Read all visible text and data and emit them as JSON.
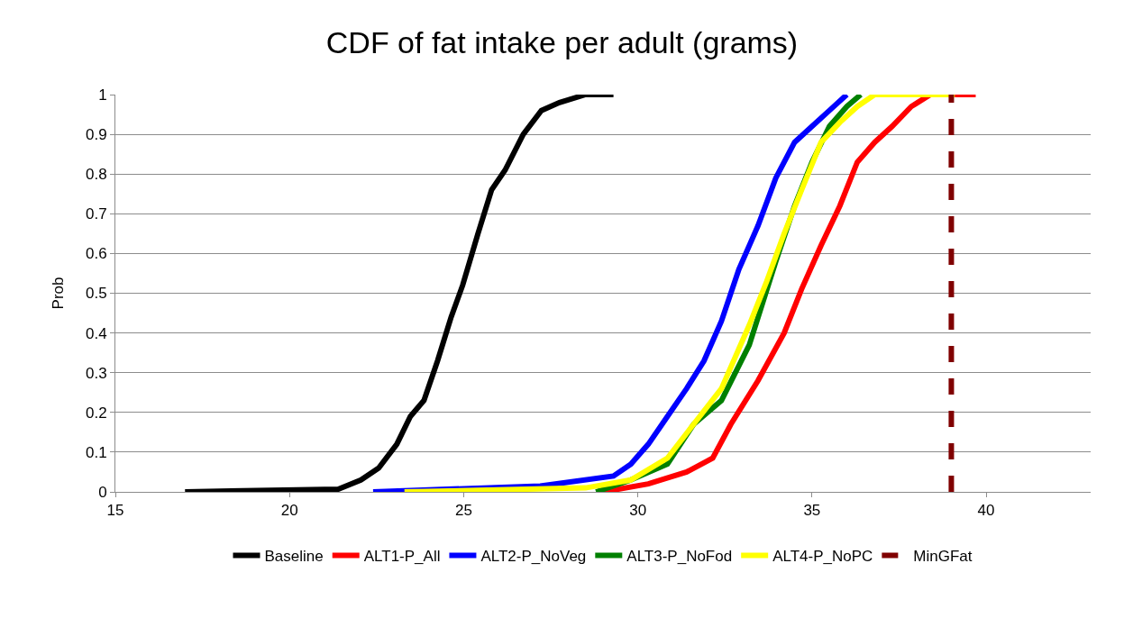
{
  "chart_data": {
    "type": "line",
    "title": "CDF of fat intake per adult (grams)",
    "ylabel": "Prob",
    "xlim": [
      15,
      43
    ],
    "xticks": [
      15,
      20,
      25,
      30,
      35,
      40
    ],
    "ylim": [
      0,
      1
    ],
    "yticks": [
      0,
      0.1,
      0.2,
      0.3,
      0.4,
      0.5,
      0.6,
      0.7,
      0.8,
      0.9,
      1
    ],
    "grid": "y",
    "legend": "bottom",
    "marker": "none",
    "line_style": "solid",
    "series": [
      {
        "name": "Baseline",
        "color": "#000000",
        "x": [
          17.0,
          21.4,
          22.05,
          22.56,
          23.08,
          23.47,
          23.86,
          24.25,
          24.64,
          24.97,
          25.41,
          25.8,
          26.19,
          26.71,
          27.23,
          27.75,
          28.5,
          29.3
        ],
        "values": [
          0,
          0.007,
          0.03,
          0.06,
          0.12,
          0.19,
          0.23,
          0.33,
          0.44,
          0.52,
          0.65,
          0.76,
          0.81,
          0.9,
          0.96,
          0.98,
          1,
          1
        ]
      },
      {
        "name": "ALT1-P_All",
        "color": "#ff0000",
        "x": [
          29.0,
          30.3,
          31.4,
          32.15,
          32.67,
          33.45,
          34.2,
          34.7,
          35.26,
          35.8,
          36.3,
          36.8,
          37.3,
          37.85,
          38.4,
          39.7
        ],
        "values": [
          0,
          0.02,
          0.05,
          0.085,
          0.17,
          0.28,
          0.4,
          0.51,
          0.62,
          0.72,
          0.83,
          0.88,
          0.92,
          0.97,
          1,
          1
        ]
      },
      {
        "name": "ALT2-P_NoVeg",
        "color": "#0000ff",
        "x": [
          22.4,
          27.2,
          29.3,
          29.8,
          30.3,
          30.85,
          31.4,
          31.9,
          32.4,
          32.9,
          33.45,
          33.96,
          34.5,
          35.0,
          35.5,
          36.0
        ],
        "values": [
          0,
          0.015,
          0.04,
          0.07,
          0.12,
          0.19,
          0.26,
          0.33,
          0.43,
          0.56,
          0.67,
          0.79,
          0.88,
          0.92,
          0.96,
          1
        ]
      },
      {
        "name": "ALT3-P_NoFod",
        "color": "#008000",
        "x": [
          28.8,
          29.8,
          30.85,
          31.6,
          32.4,
          33.2,
          33.96,
          34.5,
          35.0,
          35.5,
          36.0,
          36.4
        ],
        "values": [
          0,
          0.03,
          0.07,
          0.17,
          0.23,
          0.37,
          0.58,
          0.72,
          0.83,
          0.92,
          0.97,
          1
        ]
      },
      {
        "name": "ALT4-P_NoPC",
        "color": "#ffff00",
        "x": [
          23.3,
          28.5,
          29.8,
          30.85,
          31.6,
          32.4,
          33.2,
          33.7,
          34.2,
          34.7,
          35.26,
          35.8,
          36.3,
          36.8,
          37.6,
          39.1
        ],
        "values": [
          0,
          0.01,
          0.03,
          0.085,
          0.17,
          0.26,
          0.42,
          0.53,
          0.65,
          0.76,
          0.88,
          0.93,
          0.97,
          1,
          1,
          1
        ]
      },
      {
        "name": "MinGFat",
        "color": "#800000",
        "line_style": "dashed",
        "x": [
          39,
          39
        ],
        "values": [
          0,
          1
        ]
      }
    ]
  }
}
